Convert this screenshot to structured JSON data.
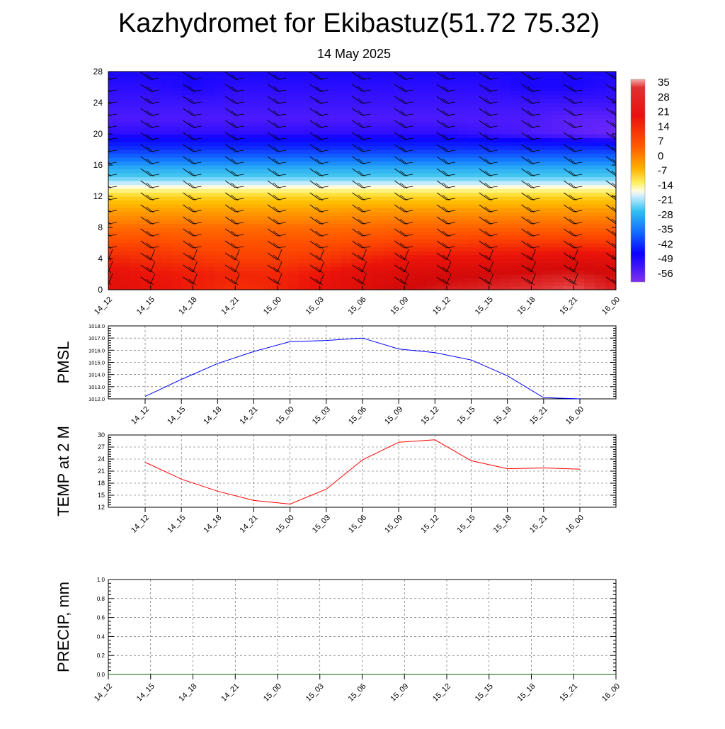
{
  "title": "Kazhydromet for Ekibastuz(51.72 75.32)",
  "subtitle": "14 May 2025",
  "chart_data": [
    {
      "type": "heatmap",
      "name": "cross-section",
      "x": [
        "14_12",
        "14_15",
        "14_18",
        "14_21",
        "15_00",
        "15_03",
        "15_06",
        "15_09",
        "15_12",
        "15_15",
        "15_18",
        "15_21",
        "16_00"
      ],
      "ylim": [
        0,
        28
      ],
      "yticks": [
        0,
        4,
        8,
        12,
        16,
        20,
        24,
        28
      ],
      "y_levels": [
        0,
        2,
        4,
        6,
        8,
        10,
        12,
        14,
        16,
        18,
        20,
        22,
        24,
        26,
        28
      ],
      "values": [
        [
          24,
          22,
          20,
          18,
          19,
          22,
          25,
          28,
          30,
          31,
          32,
          34,
          30
        ],
        [
          23,
          21,
          20,
          19,
          19,
          21,
          24,
          26,
          27,
          28,
          29,
          30,
          28
        ],
        [
          19,
          18,
          17,
          16,
          16,
          17,
          19,
          21,
          22,
          22,
          23,
          24,
          23
        ],
        [
          15,
          15,
          14,
          14,
          14,
          14,
          15,
          16,
          16,
          17,
          17,
          17,
          17
        ],
        [
          11,
          11,
          11,
          11,
          11,
          11,
          11,
          12,
          12,
          12,
          12,
          12,
          12
        ],
        [
          5,
          5,
          5,
          5,
          5,
          5,
          6,
          6,
          6,
          6,
          6,
          6,
          6
        ],
        [
          -3,
          -3,
          -3,
          -3,
          -3,
          -3,
          -3,
          -3,
          -3,
          -3,
          -3,
          -3,
          -3
        ],
        [
          -17,
          -17,
          -17,
          -17,
          -17,
          -17,
          -17,
          -17,
          -17,
          -17,
          -17,
          -17,
          -17
        ],
        [
          -30,
          -30,
          -30,
          -30,
          -30,
          -30,
          -30,
          -30,
          -30,
          -30,
          -30,
          -30,
          -30
        ],
        [
          -44,
          -44,
          -44,
          -44,
          -44,
          -44,
          -44,
          -44,
          -44,
          -44,
          -44,
          -44,
          -44
        ],
        [
          -52,
          -52,
          -52,
          -52,
          -52,
          -52,
          -52,
          -52,
          -52,
          -53,
          -54,
          -55,
          -56
        ],
        [
          -54,
          -54,
          -54,
          -54,
          -54,
          -54,
          -54,
          -54,
          -54,
          -54,
          -54,
          -55,
          -55
        ],
        [
          -53,
          -53,
          -53,
          -53,
          -53,
          -53,
          -53,
          -53,
          -53,
          -53,
          -53,
          -53,
          -53
        ],
        [
          -52,
          -52,
          -51,
          -52,
          -52,
          -52,
          -52,
          -52,
          -52,
          -52,
          -51,
          -51,
          -52
        ],
        [
          -51,
          -51,
          -51,
          -51,
          -51,
          -51,
          -51,
          -51,
          -51,
          -51,
          -51,
          -51,
          -51
        ]
      ],
      "colorbar_labels": [
        "35",
        "28",
        "21",
        "14",
        "7",
        "0",
        "-7",
        "-14",
        "-21",
        "-28",
        "-35",
        "-42",
        "-49",
        "-56"
      ],
      "colorbar_range": [
        -60,
        38
      ],
      "wind_barbs": true
    },
    {
      "type": "line",
      "name": "pmsl",
      "ylabel": "PMSL",
      "x": [
        "14_12",
        "14_15",
        "14_18",
        "14_21",
        "15_00",
        "15_03",
        "15_06",
        "15_09",
        "15_12",
        "15_15",
        "15_18",
        "15_21",
        "16_00"
      ],
      "values": [
        1012.2,
        1013.6,
        1014.9,
        1015.9,
        1016.7,
        1016.8,
        1017.0,
        1016.1,
        1015.8,
        1015.2,
        1013.9,
        1012.1,
        1012.0
      ],
      "ylim": [
        1012.0,
        1018.0
      ],
      "yticks": [
        "1012.0",
        "1013.0",
        "1014.0",
        "1015.0",
        "1016.0",
        "1017.0",
        "1018.0"
      ],
      "color": "#0000ff"
    },
    {
      "type": "line",
      "name": "temp2m",
      "ylabel": "TEMP at 2 M",
      "x": [
        "14_12",
        "14_15",
        "14_18",
        "14_21",
        "15_00",
        "15_03",
        "15_06",
        "15_09",
        "15_12",
        "15_15",
        "15_18",
        "15_21",
        "16_00"
      ],
      "values": [
        23.2,
        19.0,
        16.0,
        13.7,
        12.8,
        16.5,
        23.8,
        28.2,
        28.8,
        23.6,
        21.6,
        21.8,
        21.5
      ],
      "ylim": [
        12,
        30
      ],
      "yticks": [
        "12",
        "15",
        "18",
        "21",
        "24",
        "27",
        "30"
      ],
      "color": "#ff0000"
    },
    {
      "type": "line",
      "name": "precip",
      "ylabel": "PRECIP, mm",
      "x": [
        "14_12",
        "14_15",
        "14_18",
        "14_21",
        "15_00",
        "15_03",
        "15_06",
        "15_09",
        "15_12",
        "15_15",
        "15_18",
        "15_21",
        "16_00"
      ],
      "values": [
        0,
        0,
        0,
        0,
        0,
        0,
        0,
        0,
        0,
        0,
        0,
        0,
        0
      ],
      "ylim": [
        0,
        1
      ],
      "yticks": [
        "0.0",
        "0.2",
        "0.4",
        "0.6",
        "0.8",
        "1.0"
      ],
      "color": "#006400"
    }
  ]
}
